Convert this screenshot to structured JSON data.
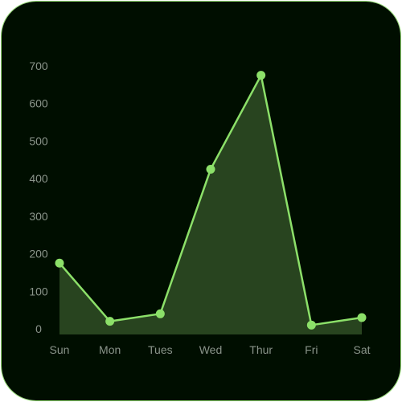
{
  "theme": {
    "background": "#000e00",
    "line": "#8ce069",
    "fill": "#2f4e25",
    "tick_label": "#8a948a",
    "border": "#8fd86e"
  },
  "chart_data": {
    "type": "area",
    "title": "",
    "xlabel": "",
    "ylabel": "",
    "categories": [
      "Sun",
      "Mon",
      "Tues",
      "Wed",
      "Thur",
      "Fri",
      "Sat"
    ],
    "series": [
      {
        "values": [
          190,
          35,
          55,
          440,
          690,
          25,
          45
        ]
      }
    ],
    "ylim": [
      0,
      700
    ],
    "yticks": [
      0,
      100,
      200,
      300,
      400,
      500,
      600,
      700
    ],
    "grid": false,
    "legend": "none"
  }
}
